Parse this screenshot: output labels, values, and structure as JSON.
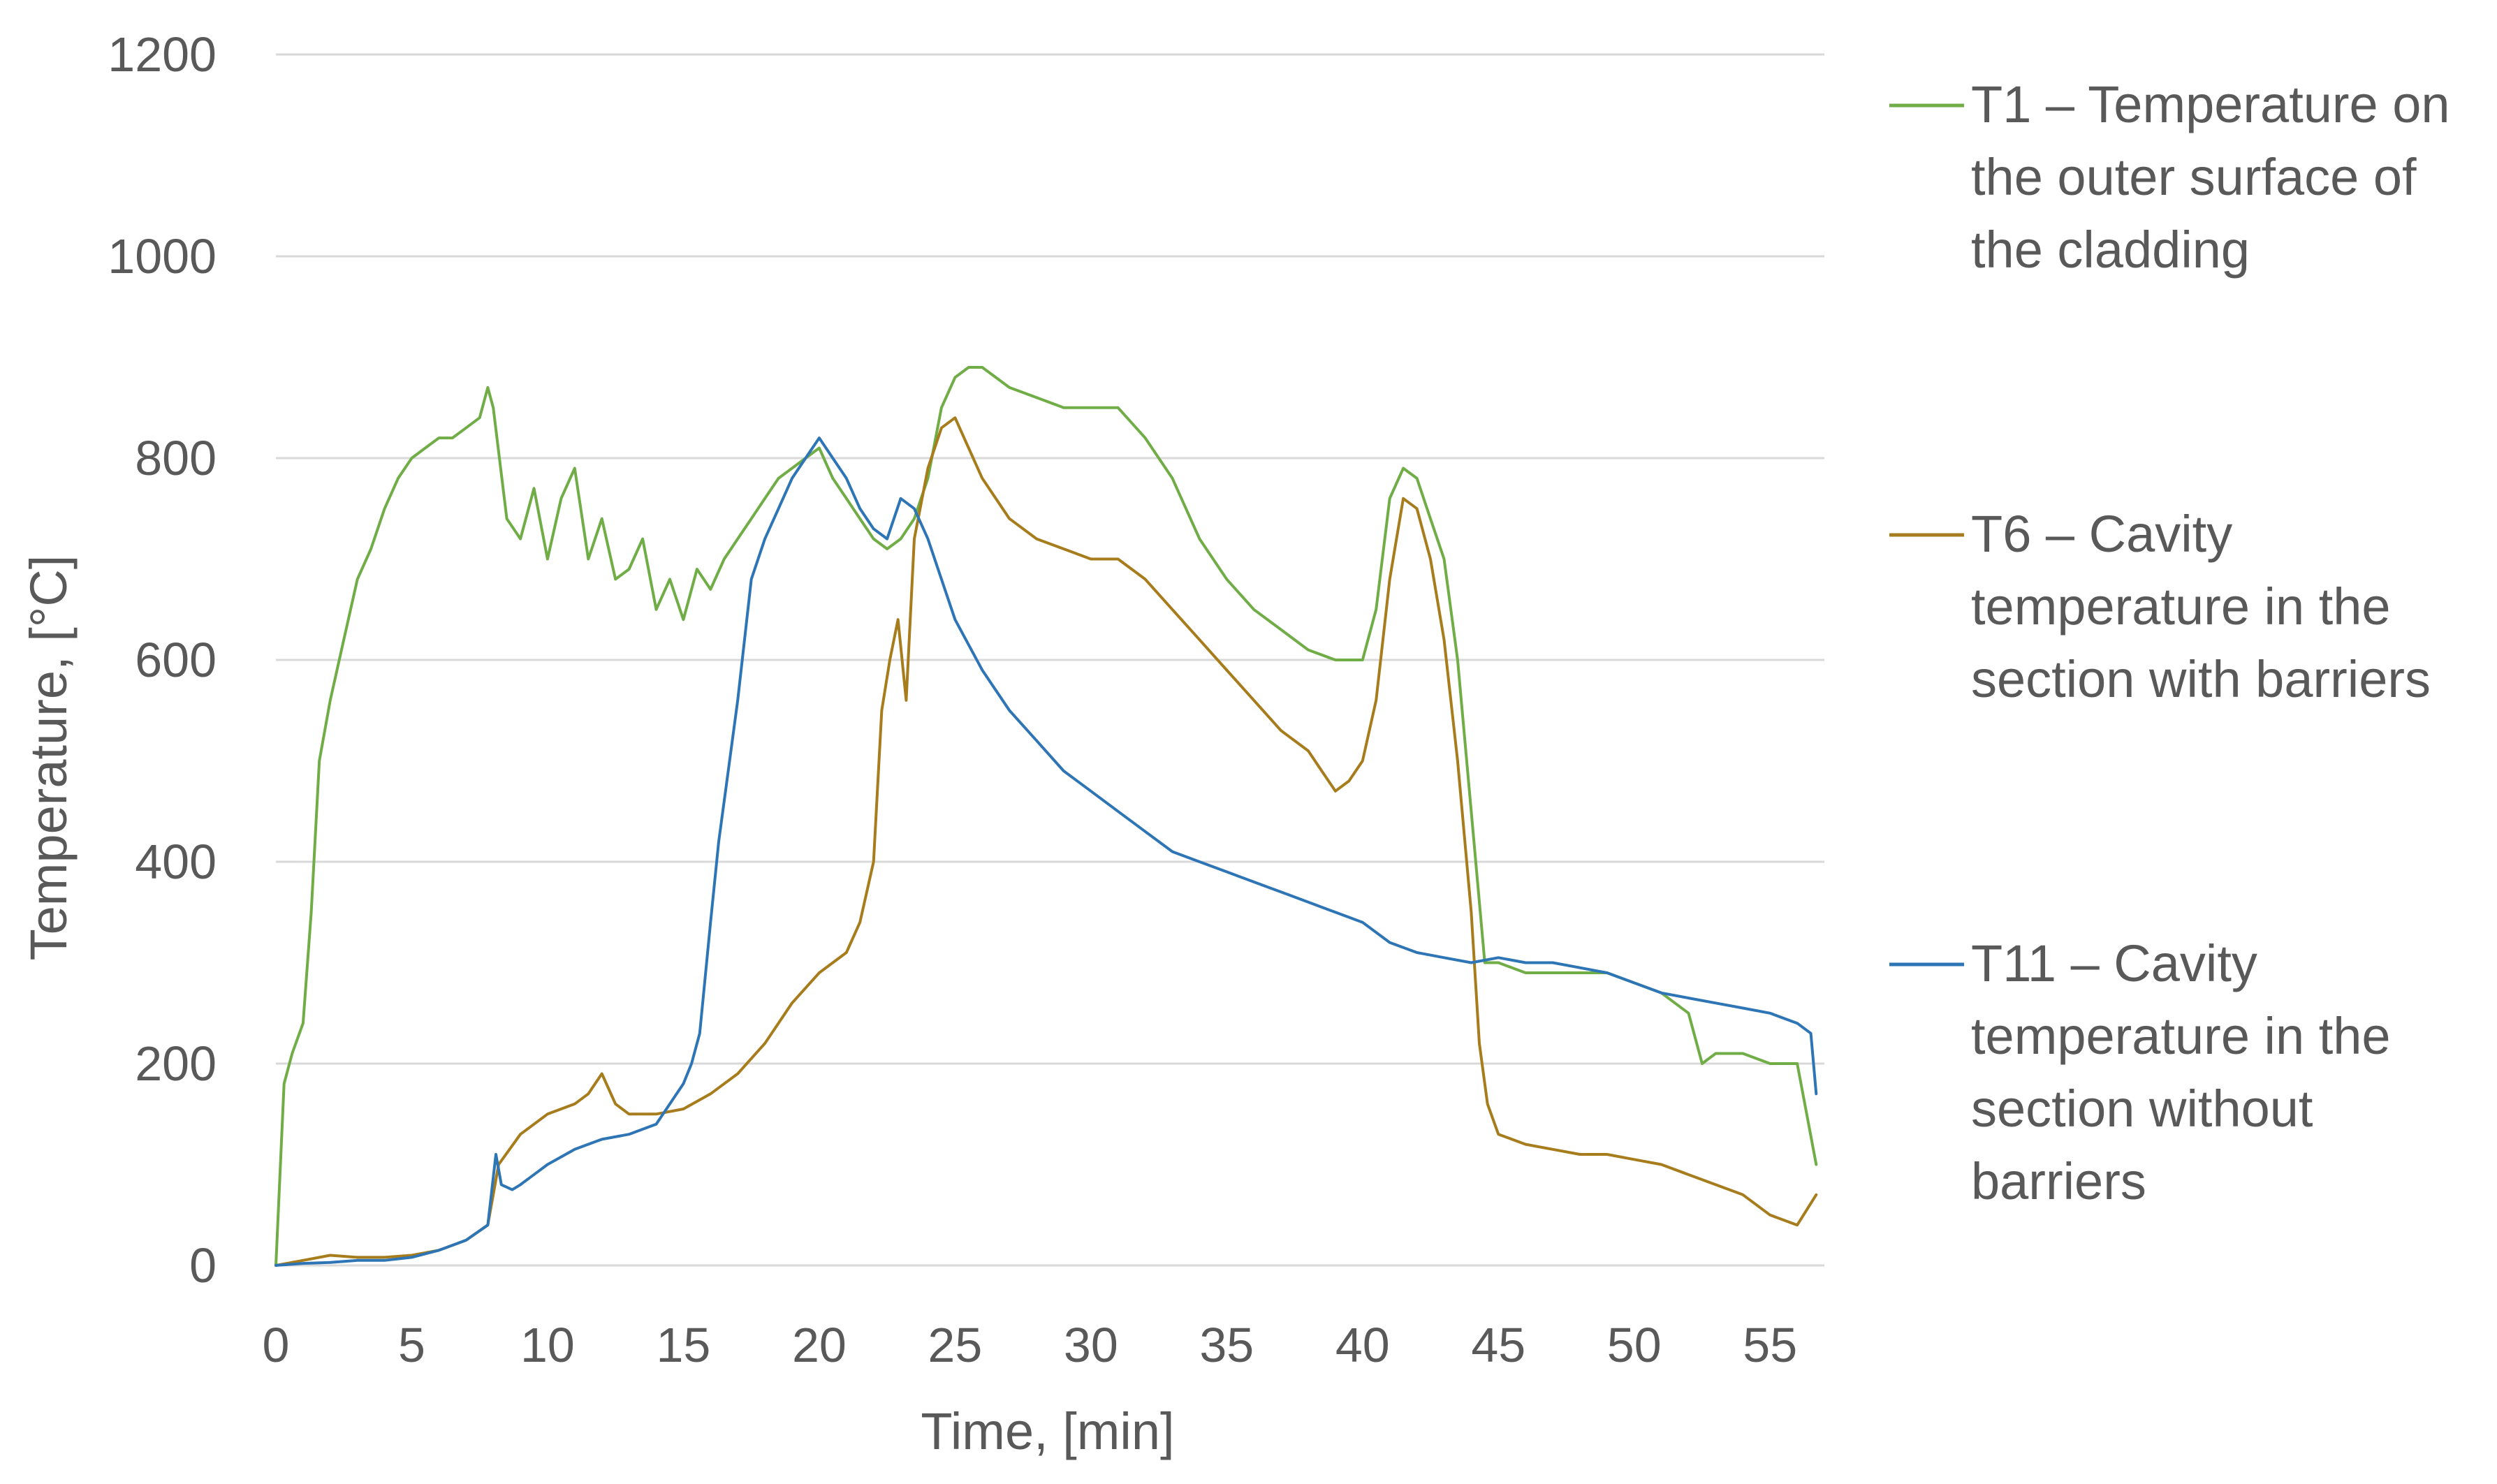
{
  "chart_data": {
    "type": "line",
    "title": "",
    "xlabel": "Time, [min]",
    "ylabel": "Temperature, [°C]",
    "xlim": [
      0,
      57
    ],
    "ylim": [
      0,
      1200
    ],
    "xticks": [
      0,
      5,
      10,
      15,
      20,
      25,
      30,
      35,
      40,
      45,
      50,
      55
    ],
    "yticks": [
      0,
      200,
      400,
      600,
      800,
      1000,
      1200
    ],
    "grid": "horizontal",
    "legend": "right",
    "series": [
      {
        "name": "T1 – Temperature on the outer surface of the cladding",
        "legend_lines": [
          "T1 – Temperature on",
          "the outer surface of",
          "the cladding"
        ],
        "color": "#70AD47",
        "x": [
          0,
          0.3,
          0.6,
          1.0,
          1.3,
          1.6,
          2.0,
          2.5,
          3.0,
          3.5,
          4.0,
          4.5,
          5.0,
          5.5,
          6.0,
          6.5,
          7.0,
          7.5,
          7.8,
          8.0,
          8.5,
          9.0,
          9.5,
          10.0,
          10.5,
          11.0,
          11.5,
          12.0,
          12.5,
          13.0,
          13.5,
          14.0,
          14.5,
          15.0,
          15.5,
          16.0,
          16.5,
          17.0,
          17.5,
          18.0,
          18.5,
          19.0,
          19.5,
          20.0,
          20.5,
          21.0,
          21.5,
          22.0,
          22.5,
          23.0,
          23.5,
          24.0,
          24.5,
          25.0,
          25.5,
          26.0,
          27.0,
          28.0,
          29.0,
          30.0,
          31.0,
          32.0,
          33.0,
          34.0,
          35.0,
          36.0,
          37.0,
          38.0,
          39.0,
          40.0,
          40.5,
          41.0,
          41.5,
          42.0,
          42.5,
          43.0,
          43.5,
          44.0,
          44.5,
          45.0,
          46.0,
          47.0,
          48.0,
          49.0,
          50.0,
          51.0,
          52.0,
          52.5,
          53.0,
          54.0,
          55.0,
          56.0,
          56.7
        ],
        "y": [
          0,
          180,
          210,
          240,
          350,
          500,
          560,
          620,
          680,
          710,
          750,
          780,
          800,
          810,
          820,
          820,
          830,
          840,
          870,
          850,
          740,
          720,
          770,
          700,
          760,
          790,
          700,
          740,
          680,
          690,
          720,
          650,
          680,
          640,
          690,
          670,
          700,
          720,
          740,
          760,
          780,
          790,
          800,
          810,
          780,
          760,
          740,
          720,
          710,
          720,
          740,
          780,
          850,
          880,
          890,
          890,
          870,
          860,
          850,
          850,
          850,
          820,
          780,
          720,
          680,
          650,
          630,
          610,
          600,
          600,
          650,
          760,
          790,
          780,
          740,
          700,
          600,
          450,
          300,
          300,
          290,
          290,
          290,
          290,
          280,
          270,
          250,
          200,
          210,
          210,
          200,
          200,
          100
        ]
      },
      {
        "name": "T6 – Cavity temperature in the section with barriers",
        "legend_lines": [
          "T6 – Cavity",
          "temperature in the",
          "section with barriers"
        ],
        "color": "#A67C1C",
        "x": [
          0,
          1,
          2,
          3,
          4,
          5,
          6,
          7,
          7.8,
          8.2,
          9,
          10,
          11,
          11.5,
          12,
          12.5,
          13,
          14,
          15,
          16,
          17,
          18,
          19,
          20,
          21,
          21.5,
          22,
          22.3,
          22.6,
          22.9,
          23.2,
          23.5,
          24,
          24.5,
          25,
          25.5,
          26,
          27,
          28,
          29,
          30,
          31,
          32,
          33,
          34,
          35,
          36,
          37,
          38,
          38.5,
          39,
          39.5,
          40,
          40.5,
          41,
          41.5,
          42,
          42.5,
          43,
          43.5,
          44,
          44.3,
          44.6,
          45,
          46,
          47,
          48,
          49,
          50,
          51,
          52,
          53,
          54,
          55,
          56,
          56.7
        ],
        "y": [
          0,
          5,
          10,
          8,
          8,
          10,
          15,
          25,
          40,
          100,
          130,
          150,
          160,
          170,
          190,
          160,
          150,
          150,
          155,
          170,
          190,
          220,
          260,
          290,
          310,
          340,
          400,
          550,
          600,
          640,
          560,
          720,
          790,
          830,
          840,
          810,
          780,
          740,
          720,
          710,
          700,
          700,
          680,
          650,
          620,
          590,
          560,
          530,
          510,
          490,
          470,
          480,
          500,
          560,
          680,
          760,
          750,
          700,
          620,
          500,
          350,
          220,
          160,
          130,
          120,
          115,
          110,
          110,
          105,
          100,
          90,
          80,
          70,
          50,
          40,
          70
        ]
      },
      {
        "name": "T11 – Cavity temperature in the section without barriers",
        "legend_lines": [
          "T11 – Cavity",
          "temperature in the",
          "section without",
          "barriers"
        ],
        "color": "#2E75B6",
        "x": [
          0,
          1,
          2,
          3,
          4,
          5,
          6,
          7,
          7.8,
          8.1,
          8.3,
          8.7,
          9,
          10,
          11,
          12,
          13,
          14,
          14.5,
          15,
          15.3,
          15.6,
          16,
          16.3,
          16.6,
          17,
          17.5,
          18,
          18.5,
          19,
          19.5,
          20,
          20.5,
          21,
          21.5,
          22,
          22.5,
          23,
          23.5,
          24,
          24.5,
          25,
          26,
          27,
          28,
          29,
          30,
          31,
          32,
          33,
          34,
          35,
          36,
          37,
          38,
          39,
          40,
          41,
          42,
          43,
          44,
          45,
          46,
          47,
          48,
          49,
          50,
          51,
          52,
          53,
          54,
          55,
          56,
          56.5,
          56.7
        ],
        "y": [
          0,
          2,
          3,
          5,
          5,
          8,
          15,
          25,
          40,
          110,
          80,
          75,
          80,
          100,
          115,
          125,
          130,
          140,
          160,
          180,
          200,
          230,
          340,
          420,
          480,
          560,
          680,
          720,
          750,
          780,
          800,
          820,
          800,
          780,
          750,
          730,
          720,
          760,
          750,
          720,
          680,
          640,
          590,
          550,
          520,
          490,
          470,
          450,
          430,
          410,
          400,
          390,
          380,
          370,
          360,
          350,
          340,
          320,
          310,
          305,
          300,
          305,
          300,
          300,
          295,
          290,
          280,
          270,
          265,
          260,
          255,
          250,
          240,
          230,
          170
        ]
      }
    ]
  }
}
